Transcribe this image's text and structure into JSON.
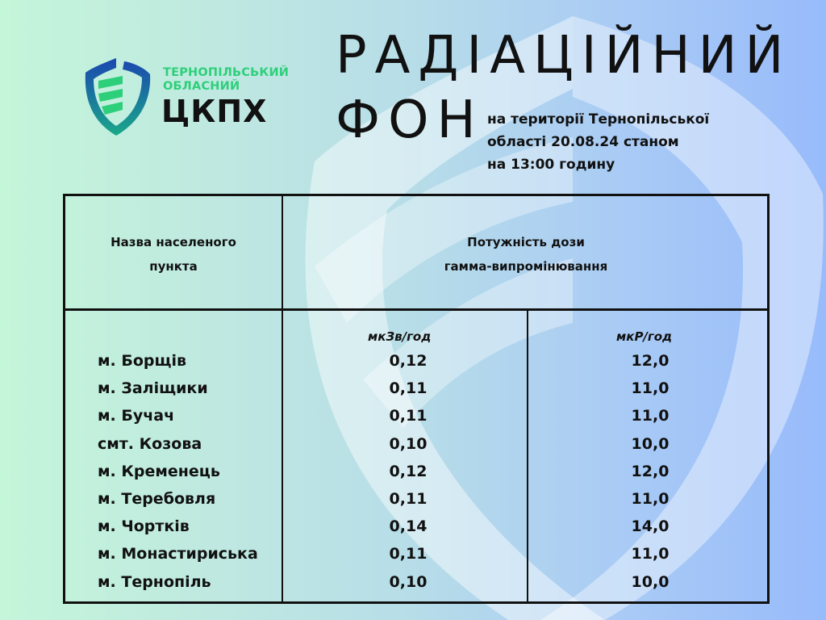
{
  "logo": {
    "line1": "ТЕРНОПІЛЬСЬКИЙ",
    "line2": "ОБЛАСНИЙ",
    "main": "ЦКПХ"
  },
  "title": {
    "line1": "РАДІАЦІЙНИЙ",
    "line2": "ФОН"
  },
  "subtitle": [
    "на території Тернопільської",
    "області 20.08.24 станом",
    "на 13:00 годину"
  ],
  "table": {
    "header_name": [
      "Назва населеного",
      "пункта"
    ],
    "header_dose": [
      "Потужність дози",
      "гамма-випромінювання"
    ],
    "units": [
      "мкЗв/год",
      "мкР/год"
    ],
    "rows": [
      {
        "name": "м. Борщів",
        "usv": "0,12",
        "ur": "12,0"
      },
      {
        "name": "м. Заліщики",
        "usv": "0,11",
        "ur": "11,0"
      },
      {
        "name": "м. Бучач",
        "usv": "0,11",
        "ur": "11,0"
      },
      {
        "name": "смт.  Козова",
        "usv": "0,10",
        "ur": "10,0"
      },
      {
        "name": "м. Кременець",
        "usv": "0,12",
        "ur": "12,0"
      },
      {
        "name": "м. Теребовля",
        "usv": "0,11",
        "ur": "11,0"
      },
      {
        "name": "м. Чортків",
        "usv": "0,14",
        "ur": "14,0"
      },
      {
        "name": "м. Монастириська",
        "usv": "0,11",
        "ur": "11,0"
      },
      {
        "name": "м. Тернопіль",
        "usv": "0,10",
        "ur": "10,0"
      }
    ]
  },
  "colors": {
    "logo_green": "#2ecf7a",
    "logo_blue": "#1f4fb5",
    "bg_left": "#c4f6da",
    "bg_right": "#98bbfb"
  }
}
